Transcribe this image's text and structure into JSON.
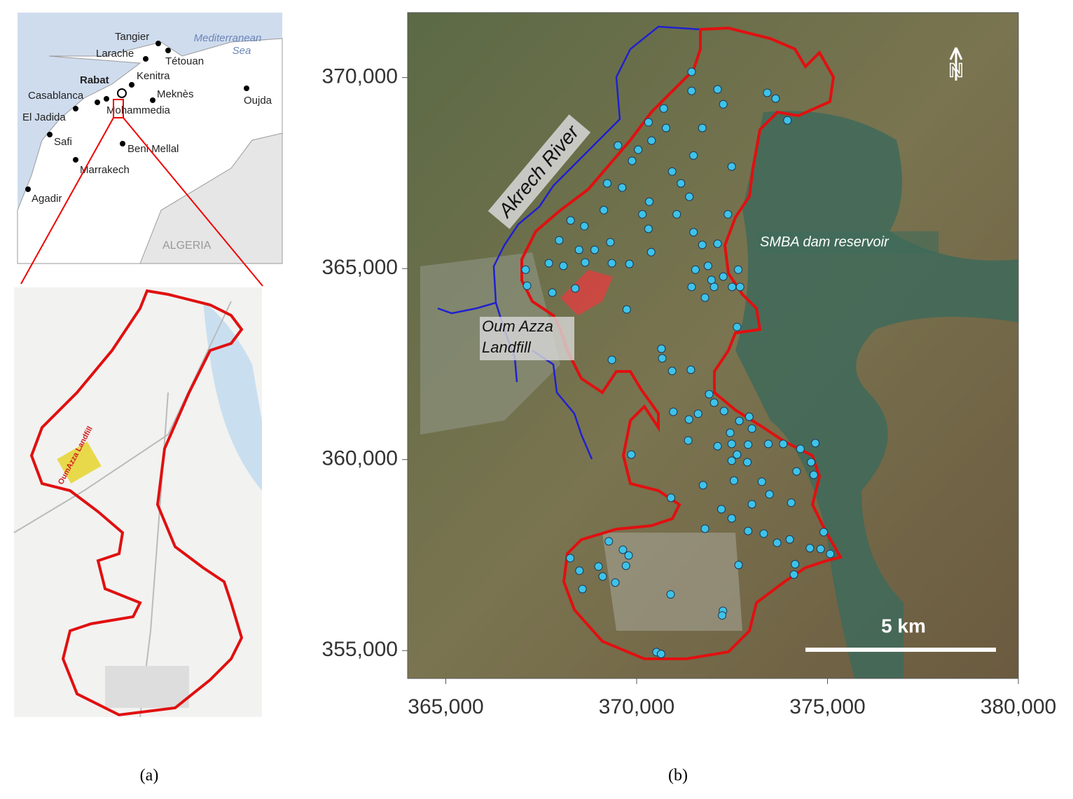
{
  "panel_a": {
    "sea": [
      "Mediterranean",
      "Sea"
    ],
    "cities": [
      {
        "name": "Tangier"
      },
      {
        "name": "Larache"
      },
      {
        "name": "Tétouan"
      },
      {
        "name": "Rabat"
      },
      {
        "name": "Kenitra"
      },
      {
        "name": "Casablanca"
      },
      {
        "name": "Meknès"
      },
      {
        "name": "Oujda"
      },
      {
        "name": "Mohammedia"
      },
      {
        "name": "El Jadida"
      },
      {
        "name": "Safi"
      },
      {
        "name": "Beni Mellal"
      },
      {
        "name": "Marrakech"
      },
      {
        "name": "Agadir"
      }
    ],
    "country": "ALGERIA",
    "inset_label": "OumAzza Landfill",
    "caption": "(a)"
  },
  "panel_b": {
    "river": "Akrech River",
    "landfill": [
      "Oum Azza",
      "Landfill"
    ],
    "reservoir": "SMBA dam reservoir",
    "scale": "5 km",
    "north": "N",
    "caption": "(b)",
    "xlim": [
      364000,
      380000
    ],
    "ylim": [
      354270,
      371700
    ],
    "xticks": [
      {
        "value": 365000,
        "label": "365,000"
      },
      {
        "value": 370000,
        "label": "370,000"
      },
      {
        "value": 375000,
        "label": "375,000"
      },
      {
        "value": 380000,
        "label": "380,000"
      }
    ],
    "yticks": [
      {
        "value": 355000,
        "label": "355,000"
      },
      {
        "value": 360000,
        "label": "360,000"
      },
      {
        "value": 365000,
        "label": "365,000"
      },
      {
        "value": 370000,
        "label": "370,000"
      }
    ],
    "point_color": "#3ec3e8",
    "points": [
      {
        "x": 371440,
        "y": 370150
      },
      {
        "x": 371440,
        "y": 369650
      },
      {
        "x": 372120,
        "y": 369690
      },
      {
        "x": 372270,
        "y": 369300
      },
      {
        "x": 373420,
        "y": 369600
      },
      {
        "x": 373640,
        "y": 369450
      },
      {
        "x": 373950,
        "y": 368880
      },
      {
        "x": 370710,
        "y": 369190
      },
      {
        "x": 370310,
        "y": 368830
      },
      {
        "x": 370770,
        "y": 368680
      },
      {
        "x": 371720,
        "y": 368680
      },
      {
        "x": 369510,
        "y": 368220
      },
      {
        "x": 370040,
        "y": 368110
      },
      {
        "x": 369880,
        "y": 367820
      },
      {
        "x": 370390,
        "y": 368350
      },
      {
        "x": 371490,
        "y": 367960
      },
      {
        "x": 370930,
        "y": 367540
      },
      {
        "x": 372490,
        "y": 367670
      },
      {
        "x": 369230,
        "y": 367230
      },
      {
        "x": 369620,
        "y": 367120
      },
      {
        "x": 371160,
        "y": 367230
      },
      {
        "x": 371380,
        "y": 366880
      },
      {
        "x": 370330,
        "y": 366750
      },
      {
        "x": 369140,
        "y": 366530
      },
      {
        "x": 370150,
        "y": 366420
      },
      {
        "x": 371050,
        "y": 366420
      },
      {
        "x": 372390,
        "y": 366420
      },
      {
        "x": 368270,
        "y": 366260
      },
      {
        "x": 368630,
        "y": 366110
      },
      {
        "x": 370310,
        "y": 366040
      },
      {
        "x": 371490,
        "y": 365950
      },
      {
        "x": 367970,
        "y": 365740
      },
      {
        "x": 369310,
        "y": 365690
      },
      {
        "x": 371720,
        "y": 365620
      },
      {
        "x": 372120,
        "y": 365650
      },
      {
        "x": 368490,
        "y": 365490
      },
      {
        "x": 368900,
        "y": 365490
      },
      {
        "x": 370380,
        "y": 365430
      },
      {
        "x": 367700,
        "y": 365140
      },
      {
        "x": 368080,
        "y": 365070
      },
      {
        "x": 368650,
        "y": 365160
      },
      {
        "x": 369350,
        "y": 365140
      },
      {
        "x": 369810,
        "y": 365120
      },
      {
        "x": 367090,
        "y": 364970
      },
      {
        "x": 367130,
        "y": 364550
      },
      {
        "x": 367790,
        "y": 364370
      },
      {
        "x": 368390,
        "y": 364480
      },
      {
        "x": 369740,
        "y": 363930
      },
      {
        "x": 371540,
        "y": 364970
      },
      {
        "x": 371870,
        "y": 365070
      },
      {
        "x": 371960,
        "y": 364700
      },
      {
        "x": 372270,
        "y": 364790
      },
      {
        "x": 372660,
        "y": 364970
      },
      {
        "x": 371440,
        "y": 364520
      },
      {
        "x": 371790,
        "y": 364240
      },
      {
        "x": 372030,
        "y": 364520
      },
      {
        "x": 372500,
        "y": 364520
      },
      {
        "x": 372710,
        "y": 364520
      },
      {
        "x": 372630,
        "y": 363470
      },
      {
        "x": 370650,
        "y": 362900
      },
      {
        "x": 370670,
        "y": 362650
      },
      {
        "x": 369350,
        "y": 362610
      },
      {
        "x": 370930,
        "y": 362320
      },
      {
        "x": 371420,
        "y": 362350
      },
      {
        "x": 371900,
        "y": 361710
      },
      {
        "x": 372030,
        "y": 361490
      },
      {
        "x": 372290,
        "y": 361270
      },
      {
        "x": 370960,
        "y": 361250
      },
      {
        "x": 371370,
        "y": 361050
      },
      {
        "x": 371610,
        "y": 361200
      },
      {
        "x": 372690,
        "y": 361010
      },
      {
        "x": 372950,
        "y": 361120
      },
      {
        "x": 373020,
        "y": 360810
      },
      {
        "x": 372450,
        "y": 360700
      },
      {
        "x": 371350,
        "y": 360500
      },
      {
        "x": 372120,
        "y": 360350
      },
      {
        "x": 372490,
        "y": 360410
      },
      {
        "x": 372920,
        "y": 360390
      },
      {
        "x": 373450,
        "y": 360410
      },
      {
        "x": 373840,
        "y": 360410
      },
      {
        "x": 374290,
        "y": 360280
      },
      {
        "x": 374680,
        "y": 360430
      },
      {
        "x": 369860,
        "y": 360130
      },
      {
        "x": 372630,
        "y": 360130
      },
      {
        "x": 372900,
        "y": 359930
      },
      {
        "x": 372490,
        "y": 359970
      },
      {
        "x": 374570,
        "y": 359930
      },
      {
        "x": 374190,
        "y": 359690
      },
      {
        "x": 374640,
        "y": 359600
      },
      {
        "x": 372550,
        "y": 359450
      },
      {
        "x": 373280,
        "y": 359420
      },
      {
        "x": 371740,
        "y": 359330
      },
      {
        "x": 373480,
        "y": 359090
      },
      {
        "x": 374050,
        "y": 358870
      },
      {
        "x": 370900,
        "y": 359000
      },
      {
        "x": 372220,
        "y": 358700
      },
      {
        "x": 373020,
        "y": 358830
      },
      {
        "x": 372490,
        "y": 358460
      },
      {
        "x": 371790,
        "y": 358190
      },
      {
        "x": 372920,
        "y": 358130
      },
      {
        "x": 373330,
        "y": 358060
      },
      {
        "x": 373680,
        "y": 357820
      },
      {
        "x": 374010,
        "y": 357910
      },
      {
        "x": 374540,
        "y": 357680
      },
      {
        "x": 374900,
        "y": 358100
      },
      {
        "x": 375070,
        "y": 357530
      },
      {
        "x": 369270,
        "y": 357860
      },
      {
        "x": 369640,
        "y": 357640
      },
      {
        "x": 369790,
        "y": 357490
      },
      {
        "x": 368260,
        "y": 357420
      },
      {
        "x": 369000,
        "y": 357200
      },
      {
        "x": 369720,
        "y": 357220
      },
      {
        "x": 368500,
        "y": 357090
      },
      {
        "x": 369110,
        "y": 356940
      },
      {
        "x": 369440,
        "y": 356780
      },
      {
        "x": 368580,
        "y": 356610
      },
      {
        "x": 372670,
        "y": 357240
      },
      {
        "x": 374150,
        "y": 357260
      },
      {
        "x": 374120,
        "y": 356990
      },
      {
        "x": 370890,
        "y": 356470
      },
      {
        "x": 372260,
        "y": 356040
      },
      {
        "x": 372240,
        "y": 355920
      },
      {
        "x": 370520,
        "y": 354960
      },
      {
        "x": 370640,
        "y": 354910
      },
      {
        "x": 374820,
        "y": 357660
      }
    ]
  }
}
